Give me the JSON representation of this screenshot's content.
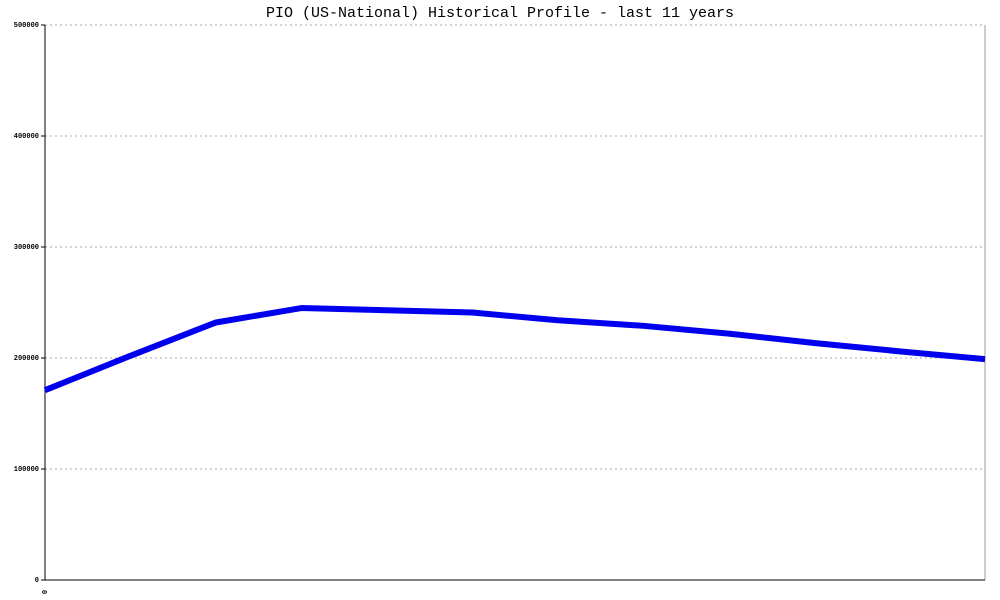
{
  "chart_data": {
    "type": "line",
    "title": "PIO (US-National) Historical Profile - last 11 years",
    "categories": [
      "0",
      null,
      null,
      null,
      null,
      null,
      null,
      null,
      null,
      null,
      null,
      null
    ],
    "series": [
      {
        "name": "PIO",
        "color": "#0000ee",
        "values": [
          171000,
          202000,
          232000,
          245000,
          243000,
          241000,
          234000,
          229000,
          222000,
          213500,
          206000,
          199000
        ]
      }
    ],
    "ylim": [
      0,
      500000
    ],
    "yticks": [
      0,
      100000,
      200000,
      300000,
      400000,
      500000
    ],
    "grid": true
  }
}
